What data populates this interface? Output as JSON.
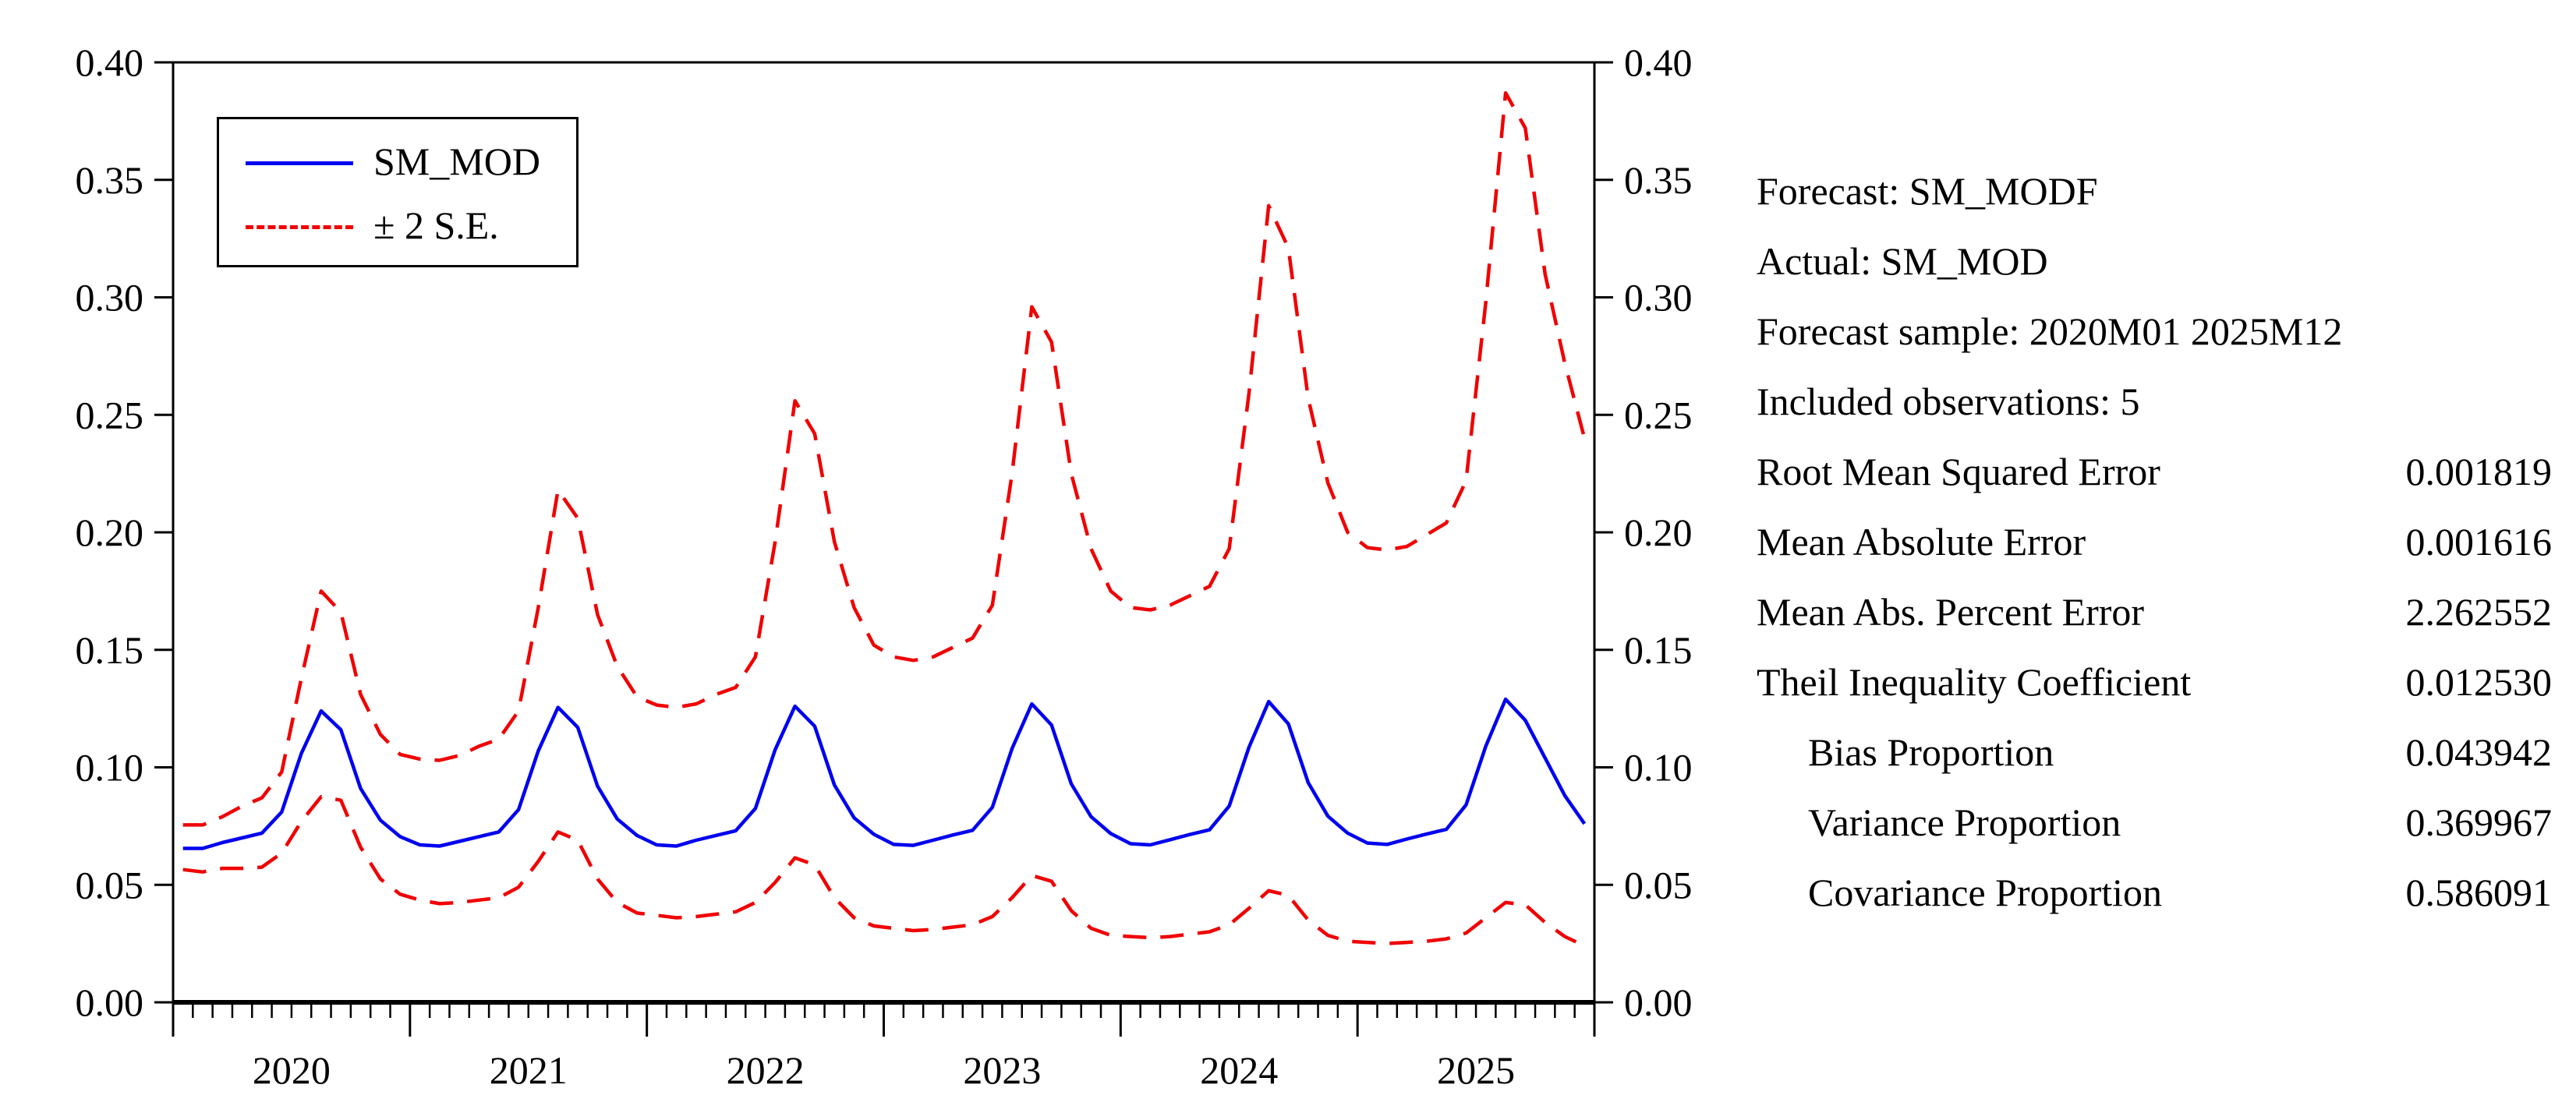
{
  "figure": {
    "background": "#ffffff",
    "kind": "EViews forecast evaluation graph"
  },
  "legend": {
    "items": [
      {
        "label": "SM_MOD",
        "color": "#0000f0",
        "style": "solid"
      },
      {
        "label": "± 2 S.E.",
        "color": "#f00000",
        "style": "dashed"
      }
    ]
  },
  "stats": {
    "rows": [
      {
        "label": "Forecast: SM_MODF",
        "value": ""
      },
      {
        "label": "Actual: SM_MOD",
        "value": ""
      },
      {
        "label": "Forecast sample: 2020M01 2025M12",
        "value": ""
      },
      {
        "label": "Included observations: 5",
        "value": ""
      },
      {
        "label": "Root Mean Squared Error",
        "value": "0.001819"
      },
      {
        "label": "Mean Absolute Error",
        "value": "0.001616"
      },
      {
        "label": "Mean Abs. Percent Error",
        "value": "2.262552"
      },
      {
        "label": "Theil Inequality Coefficient",
        "value": "0.012530"
      },
      {
        "label": "Bias Proportion",
        "value": "0.043942"
      },
      {
        "label": "Variance Proportion",
        "value": "0.369967"
      },
      {
        "label": "Covariance Proportion",
        "value": "0.586091"
      }
    ]
  },
  "chart_data": {
    "type": "line",
    "title": "",
    "xlabel": "",
    "ylabel": "",
    "x_start": "2020M01",
    "x_end": "2025M12",
    "frequency": "monthly",
    "ylim": [
      0.0,
      0.4
    ],
    "yticks": [
      0.0,
      0.05,
      0.1,
      0.15,
      0.2,
      0.25,
      0.3,
      0.35,
      0.4
    ],
    "ytick_format_decimals": 2,
    "year_tick_labels": [
      "2020",
      "2021",
      "2022",
      "2023",
      "2024",
      "2025"
    ],
    "grid": false,
    "legend_position": "top-left",
    "dual_y_axis": true,
    "categories": [
      "2020M01",
      "2020M02",
      "2020M03",
      "2020M04",
      "2020M05",
      "2020M06",
      "2020M07",
      "2020M08",
      "2020M09",
      "2020M10",
      "2020M11",
      "2020M12",
      "2021M01",
      "2021M02",
      "2021M03",
      "2021M04",
      "2021M05",
      "2021M06",
      "2021M07",
      "2021M08",
      "2021M09",
      "2021M10",
      "2021M11",
      "2021M12",
      "2022M01",
      "2022M02",
      "2022M03",
      "2022M04",
      "2022M05",
      "2022M06",
      "2022M07",
      "2022M08",
      "2022M09",
      "2022M10",
      "2022M11",
      "2022M12",
      "2023M01",
      "2023M02",
      "2023M03",
      "2023M04",
      "2023M05",
      "2023M06",
      "2023M07",
      "2023M08",
      "2023M09",
      "2023M10",
      "2023M11",
      "2023M12",
      "2024M01",
      "2024M02",
      "2024M03",
      "2024M04",
      "2024M05",
      "2024M06",
      "2024M07",
      "2024M08",
      "2024M09",
      "2024M10",
      "2024M11",
      "2024M12",
      "2025M01",
      "2025M02",
      "2025M03",
      "2025M04",
      "2025M05",
      "2025M06",
      "2025M07",
      "2025M08",
      "2025M09",
      "2025M10",
      "2025M11",
      "2025M12"
    ],
    "series": [
      {
        "name": "SM_MOD",
        "color": "#0000f0",
        "style": "solid",
        "values": [
          0.0655,
          0.0655,
          0.068,
          0.07,
          0.072,
          0.081,
          0.106,
          0.124,
          0.116,
          0.091,
          0.0775,
          0.0705,
          0.067,
          0.0665,
          0.0685,
          0.0705,
          0.0725,
          0.082,
          0.107,
          0.1255,
          0.117,
          0.092,
          0.078,
          0.071,
          0.067,
          0.0665,
          0.069,
          0.071,
          0.073,
          0.0825,
          0.1075,
          0.126,
          0.1175,
          0.0925,
          0.0785,
          0.0715,
          0.0672,
          0.0668,
          0.069,
          0.0712,
          0.0732,
          0.083,
          0.108,
          0.127,
          0.118,
          0.093,
          0.079,
          0.0718,
          0.0675,
          0.067,
          0.0692,
          0.0714,
          0.0734,
          0.0835,
          0.1085,
          0.128,
          0.1185,
          0.0935,
          0.0792,
          0.072,
          0.0678,
          0.0672,
          0.0695,
          0.0716,
          0.0736,
          0.084,
          0.109,
          0.129,
          0.12,
          0.104,
          0.088,
          0.076
        ]
      },
      {
        "name": "+ 2 S.E.",
        "color": "#f00000",
        "style": "dashed",
        "values": [
          0.0755,
          0.0755,
          0.079,
          0.0835,
          0.087,
          0.098,
          0.138,
          0.175,
          0.166,
          0.131,
          0.114,
          0.1055,
          0.1035,
          0.103,
          0.105,
          0.109,
          0.112,
          0.124,
          0.168,
          0.218,
          0.206,
          0.165,
          0.143,
          0.13,
          0.1265,
          0.1255,
          0.127,
          0.131,
          0.134,
          0.147,
          0.196,
          0.256,
          0.242,
          0.196,
          0.168,
          0.152,
          0.147,
          0.1455,
          0.147,
          0.151,
          0.155,
          0.169,
          0.225,
          0.296,
          0.281,
          0.225,
          0.193,
          0.175,
          0.168,
          0.167,
          0.169,
          0.173,
          0.177,
          0.193,
          0.259,
          0.339,
          0.321,
          0.257,
          0.221,
          0.2,
          0.1935,
          0.1925,
          0.194,
          0.199,
          0.204,
          0.222,
          0.298,
          0.387,
          0.372,
          0.31,
          0.272,
          0.24
        ]
      },
      {
        "name": "- 2 S.E.",
        "color": "#f00000",
        "style": "dashed",
        "values": [
          0.0565,
          0.0555,
          0.057,
          0.057,
          0.0575,
          0.0635,
          0.077,
          0.0875,
          0.086,
          0.066,
          0.0525,
          0.046,
          0.0435,
          0.042,
          0.0425,
          0.0435,
          0.0445,
          0.049,
          0.06,
          0.0725,
          0.069,
          0.0525,
          0.0425,
          0.038,
          0.037,
          0.036,
          0.0365,
          0.0375,
          0.0385,
          0.0425,
          0.051,
          0.0615,
          0.0585,
          0.0445,
          0.036,
          0.0325,
          0.0315,
          0.0305,
          0.031,
          0.032,
          0.033,
          0.0365,
          0.0445,
          0.054,
          0.0515,
          0.039,
          0.0315,
          0.0285,
          0.028,
          0.0275,
          0.028,
          0.029,
          0.03,
          0.033,
          0.04,
          0.0475,
          0.0455,
          0.035,
          0.0285,
          0.026,
          0.0255,
          0.025,
          0.0255,
          0.026,
          0.027,
          0.0295,
          0.036,
          0.0425,
          0.0415,
          0.034,
          0.028,
          0.024
        ]
      }
    ]
  }
}
